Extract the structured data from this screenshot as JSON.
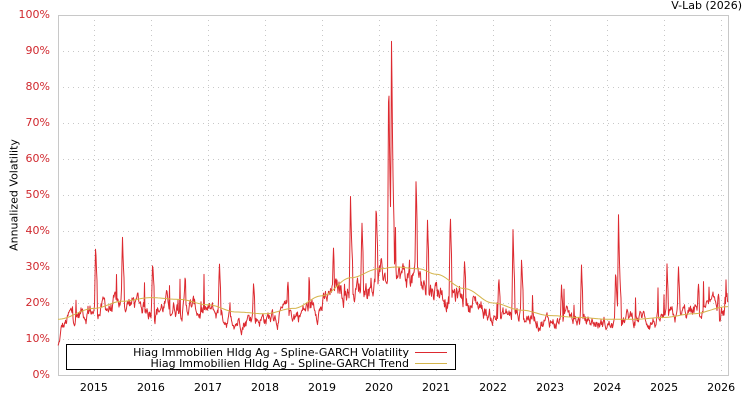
{
  "credit": "V-Lab (2026)",
  "chart_data": {
    "type": "line",
    "title": "",
    "xlabel": "",
    "ylabel": "Annualized Volatility",
    "ylim": [
      0,
      100
    ],
    "y_ticks": [
      "0%",
      "10%",
      "20%",
      "30%",
      "40%",
      "50%",
      "60%",
      "70%",
      "80%",
      "90%",
      "100%"
    ],
    "x_ticks": [
      "2015",
      "2016",
      "2017",
      "2018",
      "2019",
      "2020",
      "2021",
      "2022",
      "2023",
      "2024",
      "2025",
      "2026"
    ],
    "x_range": [
      2014.37,
      2026.12
    ],
    "grid": true,
    "legend_position": "bottom-left inside",
    "series": [
      {
        "name": "Hiag Immobilien Hldg Ag - Spline-GARCH Volatility",
        "color": "#dd2a30",
        "baseline_points": [
          [
            2014.37,
            8
          ],
          [
            2014.45,
            13
          ],
          [
            2014.6,
            16
          ],
          [
            2014.9,
            18
          ],
          [
            2015.3,
            19
          ],
          [
            2015.6,
            20
          ],
          [
            2016.0,
            19
          ],
          [
            2016.5,
            20
          ],
          [
            2017.0,
            17
          ],
          [
            2017.5,
            16
          ],
          [
            2018.0,
            16
          ],
          [
            2018.5,
            17
          ],
          [
            2019.0,
            20
          ],
          [
            2019.4,
            24
          ],
          [
            2019.8,
            25
          ],
          [
            2020.2,
            27
          ],
          [
            2020.5,
            27
          ],
          [
            2020.9,
            25
          ],
          [
            2021.3,
            22
          ],
          [
            2021.7,
            20
          ],
          [
            2022.0,
            16
          ],
          [
            2022.5,
            17
          ],
          [
            2023.0,
            15
          ],
          [
            2023.5,
            15
          ],
          [
            2024.0,
            14
          ],
          [
            2024.5,
            16
          ],
          [
            2025.0,
            15
          ],
          [
            2025.5,
            17
          ],
          [
            2026.12,
            18
          ]
        ],
        "spikes": [
          [
            2015.03,
            37
          ],
          [
            2015.5,
            39
          ],
          [
            2016.03,
            32
          ],
          [
            2016.6,
            28
          ],
          [
            2017.2,
            32
          ],
          [
            2017.8,
            26
          ],
          [
            2018.4,
            27
          ],
          [
            2019.2,
            36
          ],
          [
            2019.5,
            50
          ],
          [
            2019.7,
            43
          ],
          [
            2019.95,
            49
          ],
          [
            2020.22,
            97
          ],
          [
            2020.17,
            87
          ],
          [
            2020.65,
            56
          ],
          [
            2020.85,
            43
          ],
          [
            2021.25,
            46
          ],
          [
            2021.5,
            32
          ],
          [
            2022.1,
            28
          ],
          [
            2022.35,
            41
          ],
          [
            2022.5,
            33
          ],
          [
            2023.2,
            25
          ],
          [
            2023.55,
            31
          ],
          [
            2024.2,
            45
          ],
          [
            2024.15,
            30
          ],
          [
            2025.05,
            31
          ],
          [
            2025.25,
            31
          ],
          [
            2025.6,
            26
          ],
          [
            2025.95,
            23
          ]
        ]
      },
      {
        "name": "Hiag Immobilien Hldg Ag - Spline-GARCH Trend",
        "color": "#d4b54c",
        "points": [
          [
            2014.37,
            15.5
          ],
          [
            2015.0,
            18.5
          ],
          [
            2015.5,
            20.5
          ],
          [
            2016.0,
            21.5
          ],
          [
            2016.5,
            21
          ],
          [
            2017.0,
            19.5
          ],
          [
            2017.5,
            17.5
          ],
          [
            2018.0,
            17
          ],
          [
            2018.5,
            18.5
          ],
          [
            2019.0,
            22
          ],
          [
            2019.5,
            27
          ],
          [
            2020.0,
            29.5
          ],
          [
            2020.3,
            30
          ],
          [
            2020.7,
            29.5
          ],
          [
            2021.0,
            28
          ],
          [
            2021.5,
            24
          ],
          [
            2022.0,
            20
          ],
          [
            2022.5,
            18
          ],
          [
            2023.0,
            16.5
          ],
          [
            2023.5,
            16
          ],
          [
            2024.0,
            15.5
          ],
          [
            2024.5,
            15.5
          ],
          [
            2025.0,
            16
          ],
          [
            2025.5,
            17
          ],
          [
            2026.12,
            19
          ]
        ]
      }
    ]
  },
  "legend": {
    "items": [
      {
        "label": "Hiag Immobilien Hldg Ag - Spline-GARCH Volatility",
        "color": "#dd2a30"
      },
      {
        "label": "Hiag Immobilien Hldg Ag - Spline-GARCH Trend",
        "color": "#d4b54c"
      }
    ]
  }
}
